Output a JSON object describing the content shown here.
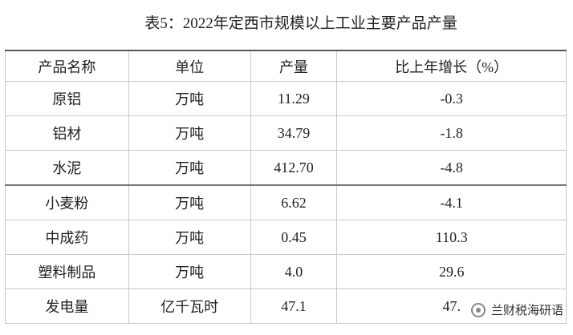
{
  "header": {
    "title": "表5：2022年定西市规模以上工业主要产品产量"
  },
  "table": {
    "columns": [
      "产品名称",
      "单位",
      "产量",
      "比上年增长（%）"
    ],
    "rows": [
      [
        "原铝",
        "万吨",
        "11.29",
        "-0.3"
      ],
      [
        "铝材",
        "万吨",
        "34.79",
        "-1.8"
      ],
      [
        "水泥",
        "万吨",
        "412.70",
        "-4.8"
      ],
      [
        "小麦粉",
        "万吨",
        "6.62",
        "-4.1"
      ],
      [
        "中成药",
        "万吨",
        "0.45",
        "110.3"
      ],
      [
        "塑料制品",
        "万吨",
        "4.0",
        "29.6"
      ],
      [
        "发电量",
        "亿千瓦时",
        "47.1",
        "47."
      ]
    ]
  },
  "watermark": "兰财税海研语"
}
